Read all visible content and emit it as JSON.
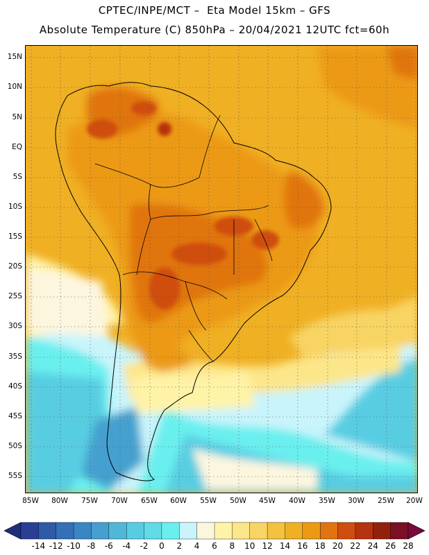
{
  "header": {
    "title_line1": "CPTEC/INPE/MCT –  Eta Model 15km – GFS",
    "title_line2": "Absolute Temperature (C) 850hPa – 20/04/2021 12UTC fct=60h"
  },
  "map": {
    "lat_labels": [
      "15N",
      "10N",
      "5N",
      "EQ",
      "5S",
      "10S",
      "15S",
      "20S",
      "25S",
      "30S",
      "35S",
      "40S",
      "45S",
      "50S",
      "55S"
    ],
    "lon_labels": [
      "85W",
      "80W",
      "75W",
      "70W",
      "65W",
      "60W",
      "55W",
      "50W",
      "45W",
      "40W",
      "35W",
      "30W",
      "25W",
      "20W"
    ],
    "grid": "dotted"
  },
  "colorbar": {
    "labels": [
      "-14",
      "-12",
      "-10",
      "-8",
      "-6",
      "-4",
      "-2",
      "0",
      "2",
      "4",
      "6",
      "8",
      "10",
      "12",
      "14",
      "16",
      "18",
      "20",
      "22",
      "24",
      "26",
      "28"
    ],
    "colors": [
      "#2a3f94",
      "#2f5aa6",
      "#3370b5",
      "#3a86c3",
      "#45a0cf",
      "#4fb8d9",
      "#58cde2",
      "#5fdce8",
      "#6aefef",
      "#c9f4fb",
      "#fdf6df",
      "#fff3a8",
      "#fce68a",
      "#f8d463",
      "#f3c23f",
      "#f0b024",
      "#ec9a14",
      "#e07410",
      "#cf4d0f",
      "#b5330e",
      "#93200c",
      "#7a0f26"
    ],
    "end_low": "#1f2f7a",
    "end_high": "#7a0a3a"
  }
}
